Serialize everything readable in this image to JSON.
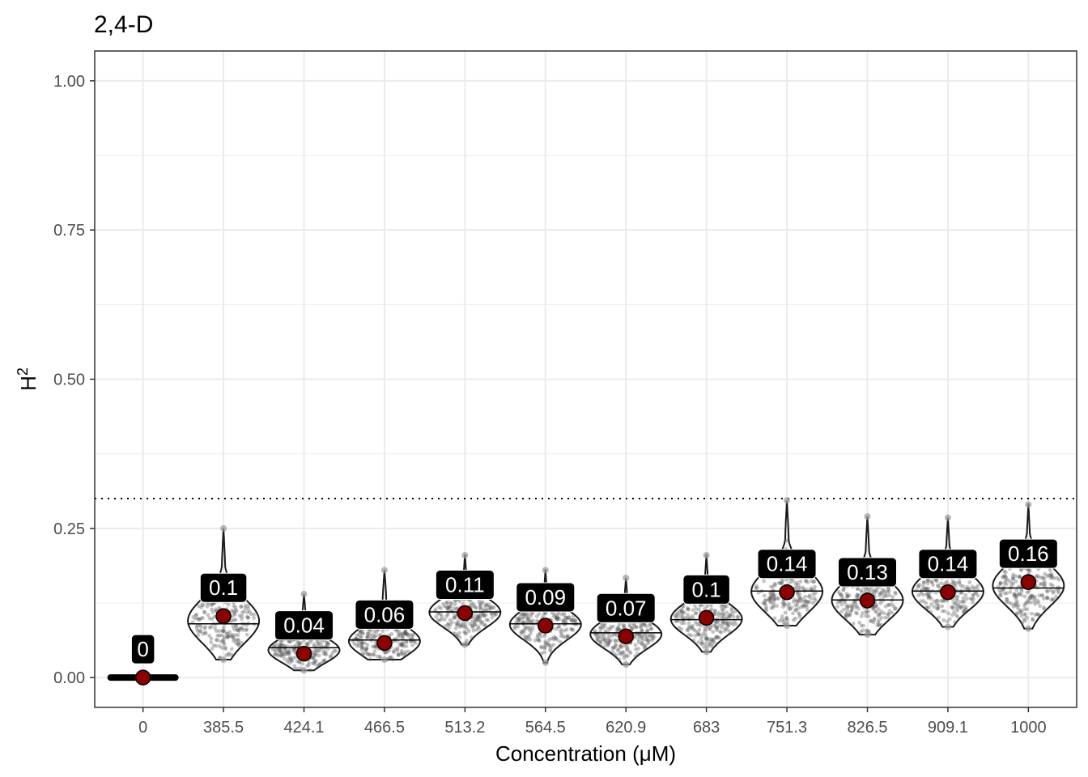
{
  "chart_data": {
    "type": "violin",
    "title": "2,4-D",
    "xlabel": "Concentration (μM)",
    "ylabel": "H",
    "ylabel_superscript": "2",
    "categories": [
      "0",
      "385.5",
      "424.1",
      "466.5",
      "513.2",
      "564.5",
      "620.9",
      "683",
      "751.3",
      "826.5",
      "909.1",
      "1000"
    ],
    "means": [
      0,
      0.103,
      0.04,
      0.058,
      0.108,
      0.087,
      0.069,
      0.1,
      0.143,
      0.129,
      0.143,
      0.16
    ],
    "data_labels": [
      "0",
      "0.1",
      "0.04",
      "0.06",
      "0.11",
      "0.09",
      "0.07",
      "0.1",
      "0.14",
      "0.13",
      "0.14",
      "0.16"
    ],
    "distribution_ranges": [
      [
        0,
        0.003
      ],
      [
        0.03,
        0.25
      ],
      [
        0.012,
        0.14
      ],
      [
        0.03,
        0.18
      ],
      [
        0.055,
        0.205
      ],
      [
        0.025,
        0.18
      ],
      [
        0.022,
        0.167
      ],
      [
        0.043,
        0.205
      ],
      [
        0.087,
        0.297
      ],
      [
        0.072,
        0.27
      ],
      [
        0.085,
        0.268
      ],
      [
        0.082,
        0.29
      ]
    ],
    "medians": [
      0,
      0.09,
      0.05,
      0.063,
      0.11,
      0.09,
      0.075,
      0.097,
      0.145,
      0.13,
      0.145,
      0.15
    ],
    "ylim": [
      -0.05,
      1.05
    ],
    "yticks": [
      0,
      0.25,
      0.5,
      0.75,
      1
    ],
    "ytick_labels": [
      "0.00",
      "0.25",
      "0.50",
      "0.75",
      "1.00"
    ],
    "reference_line": 0.3,
    "grid": true,
    "colors": {
      "mean_point": "#8b0000",
      "label_bg": "#000000",
      "label_text": "#ffffff",
      "violin_outline": "#1a1a1a",
      "jitter": "#555555",
      "grid": "#ebebeb"
    }
  }
}
